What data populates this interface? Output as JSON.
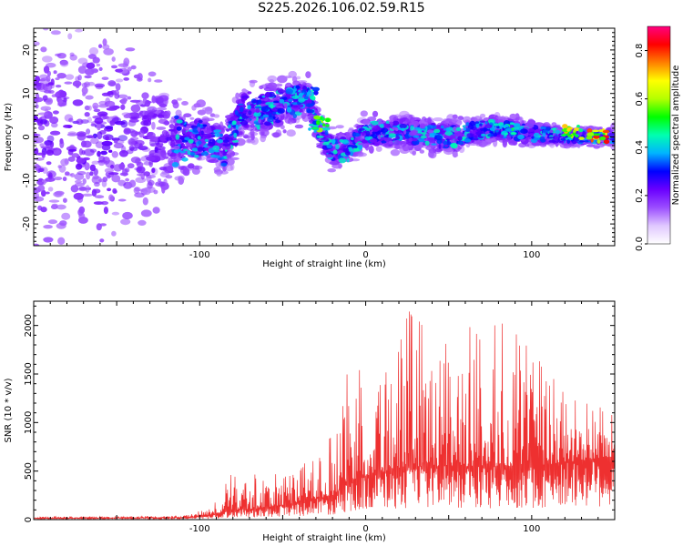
{
  "title": "S225.2026.106.02.59.R15",
  "chart_data": [
    {
      "type": "heatmap",
      "title": "S225.2026.106.02.59.R15",
      "xlabel": "Height of straight line (km)",
      "ylabel": "Frequency (Hz)",
      "xlim": [
        -200,
        150
      ],
      "ylim": [
        -25,
        25
      ],
      "xticks": [
        "-100",
        "0",
        "100"
      ],
      "yticks": [
        "-20",
        "-10",
        "0",
        "10",
        "20"
      ],
      "colorbar": {
        "label": "Normalized spectral amplitude",
        "range": [
          0.0,
          0.9
        ],
        "ticks": [
          "0.0",
          "0.2",
          "0.4",
          "0.6",
          "0.8"
        ],
        "colormap": [
          "#ffffff",
          "#e0c8ff",
          "#9b4dff",
          "#6a00ff",
          "#0000ff",
          "#00b4ff",
          "#00ffb0",
          "#00ff00",
          "#b4ff00",
          "#ffff00",
          "#ff8000",
          "#ff0000",
          "#ff0080"
        ]
      },
      "ridge": [
        {
          "x": -200,
          "center": 0,
          "spread": 25
        },
        {
          "x": -150,
          "center": 0,
          "spread": 22
        },
        {
          "x": -110,
          "center": -1,
          "spread": 8
        },
        {
          "x": -95,
          "center": 0,
          "spread": 6
        },
        {
          "x": -85,
          "center": -3,
          "spread": 6
        },
        {
          "x": -75,
          "center": 5,
          "spread": 7
        },
        {
          "x": -60,
          "center": 6,
          "spread": 6
        },
        {
          "x": -45,
          "center": 8,
          "spread": 6
        },
        {
          "x": -35,
          "center": 9,
          "spread": 5
        },
        {
          "x": -30,
          "center": 3,
          "spread": 4
        },
        {
          "x": -20,
          "center": -3,
          "spread": 5
        },
        {
          "x": -10,
          "center": -3,
          "spread": 4
        },
        {
          "x": 0,
          "center": 1,
          "spread": 4
        },
        {
          "x": 25,
          "center": 1,
          "spread": 4
        },
        {
          "x": 50,
          "center": 0,
          "spread": 4
        },
        {
          "x": 75,
          "center": 2,
          "spread": 3
        },
        {
          "x": 100,
          "center": 1,
          "spread": 3
        },
        {
          "x": 120,
          "center": 0,
          "spread": 2
        },
        {
          "x": 150,
          "center": 0,
          "spread": 2
        }
      ],
      "peak_hotspots": [
        {
          "x": -35,
          "y": 10,
          "amplitude": 0.45
        },
        {
          "x": -28,
          "y": 3,
          "amplitude": 0.6
        },
        {
          "x": 85,
          "y": 2,
          "amplitude": 0.5
        },
        {
          "x": 125,
          "y": 1,
          "amplitude": 0.75
        },
        {
          "x": 140,
          "y": 0,
          "amplitude": 0.85
        }
      ]
    },
    {
      "type": "line",
      "xlabel": "Height of straight line (km)",
      "ylabel": "SNR (10 * v/v)",
      "xlim": [
        -200,
        150
      ],
      "ylim": [
        0,
        2250
      ],
      "xticks": [
        "-100",
        "0",
        "100"
      ],
      "yticks": [
        "0",
        "500",
        "1000",
        "1500",
        "2000"
      ],
      "color": "#ee3030",
      "envelope": [
        {
          "x": -200,
          "base": 15,
          "peak": 30
        },
        {
          "x": -110,
          "base": 20,
          "peak": 40
        },
        {
          "x": -95,
          "base": 40,
          "peak": 120
        },
        {
          "x": -80,
          "base": 100,
          "peak": 500
        },
        {
          "x": -60,
          "base": 120,
          "peak": 450
        },
        {
          "x": -40,
          "base": 180,
          "peak": 550
        },
        {
          "x": -20,
          "base": 250,
          "peak": 900
        },
        {
          "x": -10,
          "base": 400,
          "peak": 1600
        },
        {
          "x": 0,
          "base": 450,
          "peak": 1700
        },
        {
          "x": 25,
          "base": 550,
          "peak": 2200
        },
        {
          "x": 50,
          "base": 550,
          "peak": 1900
        },
        {
          "x": 80,
          "base": 550,
          "peak": 2100
        },
        {
          "x": 100,
          "base": 550,
          "peak": 1800
        },
        {
          "x": 125,
          "base": 600,
          "peak": 1300
        },
        {
          "x": 150,
          "base": 650,
          "peak": 1100
        }
      ]
    }
  ]
}
